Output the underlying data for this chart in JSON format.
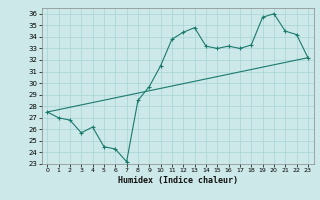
{
  "xlabel": "Humidex (Indice chaleur)",
  "ylabel": "",
  "bg_color": "#cde8e8",
  "line_color": "#1a7a6e",
  "xlim": [
    -0.5,
    23.5
  ],
  "ylim": [
    23,
    36.5
  ],
  "yticks": [
    23,
    24,
    25,
    26,
    27,
    28,
    29,
    30,
    31,
    32,
    33,
    34,
    35,
    36
  ],
  "xticks": [
    0,
    1,
    2,
    3,
    4,
    5,
    6,
    7,
    8,
    9,
    10,
    11,
    12,
    13,
    14,
    15,
    16,
    17,
    18,
    19,
    20,
    21,
    22,
    23
  ],
  "zigzag_x": [
    0,
    1,
    2,
    3,
    4,
    5,
    6,
    7,
    8,
    9,
    10,
    11,
    12,
    13,
    14,
    15,
    16,
    17,
    18,
    19,
    20,
    21,
    22,
    23
  ],
  "zigzag_y": [
    27.5,
    27.0,
    26.8,
    25.7,
    26.2,
    24.5,
    24.3,
    23.2,
    28.5,
    29.7,
    31.5,
    33.8,
    34.4,
    34.8,
    33.2,
    33.0,
    33.2,
    33.0,
    33.3,
    35.7,
    36.0,
    34.5,
    34.2,
    32.2
  ],
  "trend_x": [
    0,
    23
  ],
  "trend_y": [
    27.5,
    32.2
  ]
}
